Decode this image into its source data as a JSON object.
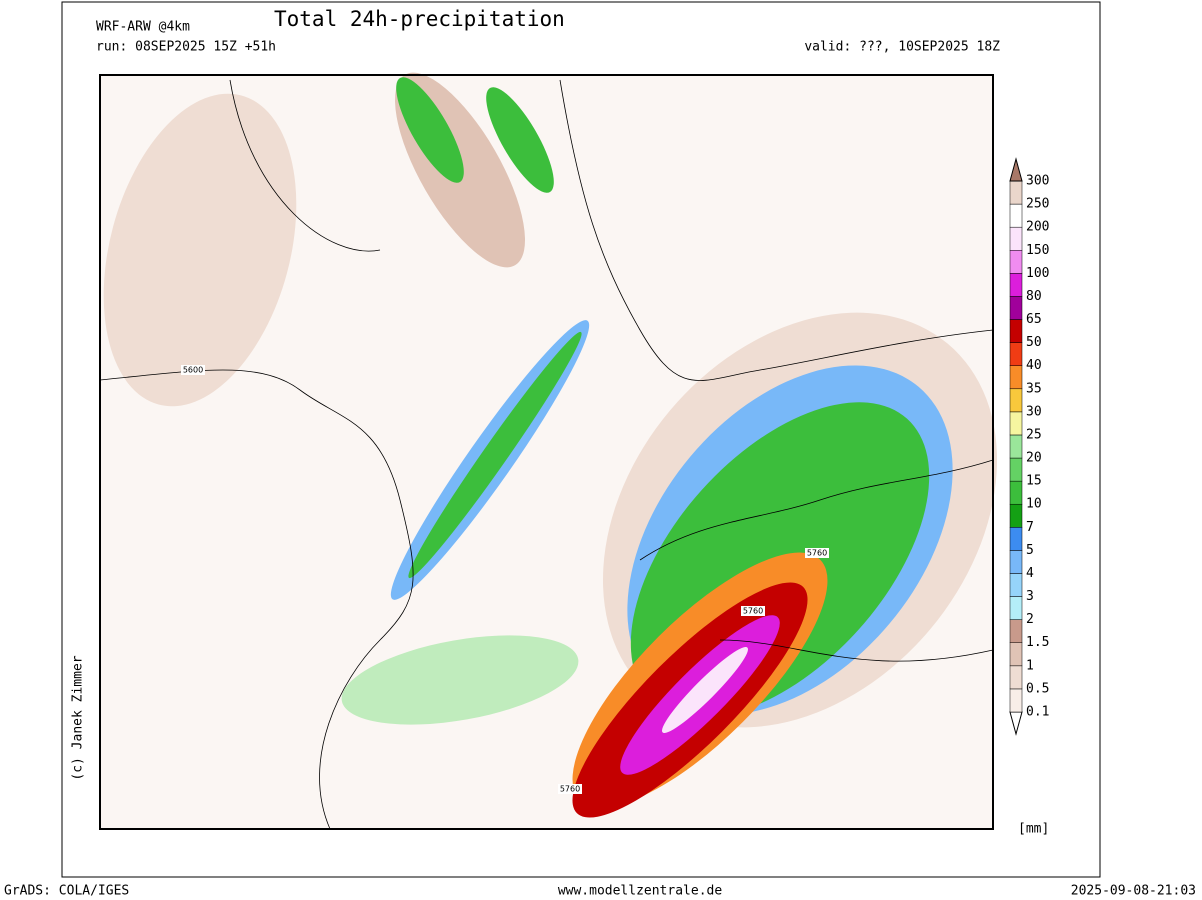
{
  "header": {
    "model": "WRF-ARW @4km",
    "title": "Total 24h-precipitation",
    "run": "run: 08SEP2025 15Z +51h",
    "valid": "valid: ???, 10SEP2025 18Z"
  },
  "copyright": "(c) Janek Zimmer",
  "contour_labels": [
    "5600",
    "5760",
    "5760",
    "5760"
  ],
  "legend": {
    "unit": "[mm]",
    "levels": [
      "0.1",
      "0.5",
      "1",
      "1.5",
      "2",
      "3",
      "4",
      "5",
      "7",
      "10",
      "15",
      "20",
      "25",
      "30",
      "35",
      "40",
      "50",
      "65",
      "80",
      "100",
      "150",
      "200",
      "250",
      "300"
    ],
    "colors": [
      "#f8eee8",
      "#efddd3",
      "#e0c3b5",
      "#c89a8b",
      "#b4eef8",
      "#96d4fa",
      "#78b8f8",
      "#3c8cf0",
      "#14a014",
      "#3cbe3c",
      "#64d264",
      "#9ae69a",
      "#f6f6a0",
      "#f8c83c",
      "#f88c28",
      "#f03c14",
      "#c40000",
      "#a0009b",
      "#dc1edc",
      "#f08cf0",
      "#fbe4fb",
      "#ffffff",
      "#ead6cb",
      "#a87868"
    ]
  },
  "footer": {
    "left": "GrADS: COLA/IGES",
    "center": "www.modellzentrale.de",
    "right": "2025-09-08-21:03"
  }
}
